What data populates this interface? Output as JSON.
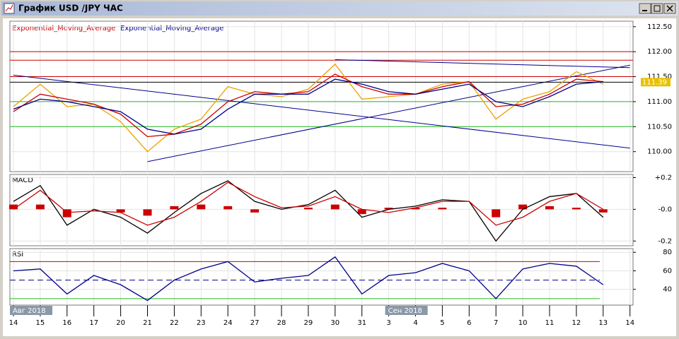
{
  "window": {
    "title": "График USD /JPY ЧАС"
  },
  "chart_data": [
    {
      "type": "line",
      "series": [
        {
          "color": "#e8a200",
          "values": [
            110.9,
            111.35,
            110.9,
            110.95,
            110.6,
            110.0,
            110.45,
            110.65,
            111.3,
            111.15,
            111.1,
            111.25,
            111.75,
            111.05,
            111.1,
            111.15,
            111.35,
            111.4,
            110.65,
            111.05,
            111.2,
            111.6,
            111.35,
            null
          ]
        },
        {
          "name": "Exponential_Moving_Average",
          "color": "#cc0000",
          "values": [
            110.8,
            111.15,
            111.05,
            110.95,
            110.75,
            110.3,
            110.35,
            110.55,
            111.0,
            111.2,
            111.15,
            111.2,
            111.55,
            111.3,
            111.15,
            111.15,
            111.3,
            111.4,
            110.9,
            110.95,
            111.15,
            111.45,
            111.4,
            null
          ]
        },
        {
          "name": "Exponential_Moving_Average",
          "color": "#00008b",
          "values": [
            110.85,
            111.05,
            111.0,
            110.9,
            110.8,
            110.45,
            110.35,
            110.45,
            110.85,
            111.15,
            111.15,
            111.15,
            111.45,
            111.35,
            111.2,
            111.15,
            111.25,
            111.35,
            111.0,
            110.9,
            111.1,
            111.35,
            111.4,
            null
          ]
        }
      ],
      "levels": [
        {
          "value": 112.0,
          "color": "#cc0000"
        },
        {
          "value": 111.83,
          "color": "#cc0000"
        },
        {
          "value": 111.5,
          "color": "#cc0000"
        },
        {
          "value": 111.0,
          "color": "#22bb22"
        },
        {
          "value": 110.5,
          "color": "#22bb22"
        }
      ],
      "last_price": 111.39,
      "trend_lines": [
        {
          "color": "#00008b",
          "start": [
            0,
            111.53
          ],
          "end": [
            23,
            110.07
          ]
        },
        {
          "color": "#00008b",
          "start": [
            5,
            109.8
          ],
          "end": [
            23,
            111.73
          ]
        },
        {
          "color": "#00008b",
          "start": [
            12,
            111.84
          ],
          "end": [
            23,
            111.68
          ]
        }
      ],
      "ylim": [
        109.6,
        112.61
      ],
      "yticks": [
        {
          "value": 112.5,
          "label": "112.50"
        },
        {
          "value": 112.0,
          "label": "112.00"
        },
        {
          "value": 111.5,
          "label": "111.50"
        },
        {
          "value": 111.0,
          "label": "111.00"
        },
        {
          "value": 110.5,
          "label": "110.50"
        },
        {
          "value": 110.0,
          "label": "110.00"
        }
      ],
      "grid": true
    },
    {
      "type": "line",
      "title": "MACD",
      "series": [
        {
          "type": "bar",
          "color": "#cc0000",
          "values": [
            0.03,
            0.03,
            -0.05,
            0.0,
            -0.02,
            -0.04,
            0.02,
            0.03,
            0.02,
            -0.02,
            0.0,
            0.01,
            0.03,
            -0.03,
            0.01,
            0.01,
            0.01,
            0.0,
            -0.05,
            0.03,
            0.02,
            0.01,
            -0.02,
            null
          ]
        },
        {
          "type": "line",
          "color": "#000000",
          "values": [
            0.05,
            0.15,
            -0.1,
            0.0,
            -0.05,
            -0.15,
            -0.02,
            0.1,
            0.18,
            0.05,
            0.0,
            0.03,
            0.12,
            -0.05,
            0.0,
            0.02,
            0.06,
            0.05,
            -0.2,
            0.0,
            0.08,
            0.1,
            -0.05,
            null
          ]
        },
        {
          "type": "line",
          "color": "#cc0000",
          "values": [
            0.0,
            0.12,
            -0.02,
            -0.01,
            -0.02,
            -0.1,
            -0.05,
            0.05,
            0.17,
            0.08,
            0.01,
            0.02,
            0.08,
            0.0,
            -0.02,
            0.01,
            0.05,
            0.05,
            -0.1,
            -0.05,
            0.05,
            0.1,
            0.0,
            null
          ]
        }
      ],
      "ylim": [
        -0.23,
        0.22
      ],
      "yticks": [
        {
          "value": 0.2,
          "label": "+0.2"
        },
        {
          "value": 0,
          "label": "-0.0"
        },
        {
          "value": -0.2,
          "label": "-0.2"
        }
      ],
      "grid": true
    },
    {
      "type": "line",
      "title": "RSI",
      "series": [
        {
          "type": "line",
          "color": "#00008b",
          "values": [
            60,
            62,
            35,
            55,
            45,
            28,
            50,
            62,
            70,
            48,
            52,
            55,
            75,
            35,
            55,
            58,
            68,
            60,
            30,
            62,
            68,
            65,
            45,
            null
          ]
        }
      ],
      "levels": [
        {
          "value": 70,
          "color": "#cc0000"
        },
        {
          "value": 50,
          "color": "#00008b",
          "dashed": true
        },
        {
          "value": 30,
          "color": "#22bb22"
        }
      ],
      "ylim": [
        23,
        84
      ],
      "yticks": [
        80,
        60,
        40
      ],
      "grid": true,
      "categories": [
        "14",
        "15",
        "16",
        "17",
        "20",
        "21",
        "22",
        "23",
        "24",
        "27",
        "28",
        "29",
        "30",
        "31",
        "3",
        "4",
        "5",
        "6",
        "7",
        "10",
        "11",
        "12",
        "13",
        "14"
      ],
      "month_labels": [
        {
          "category": 0,
          "text": "Авг 2018"
        },
        {
          "category": 14,
          "text": "Сен 2018"
        }
      ]
    }
  ]
}
